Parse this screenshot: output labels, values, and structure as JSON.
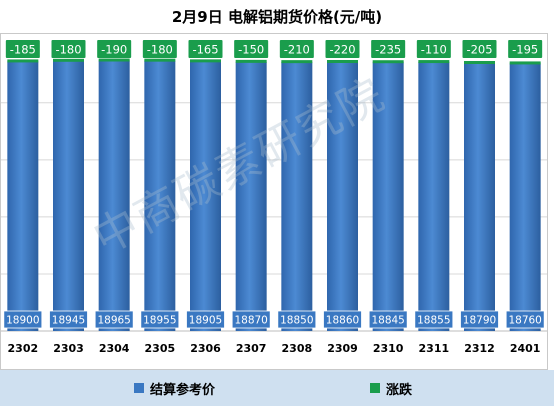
{
  "chart_data": {
    "type": "bar",
    "title": "2月9日 电解铝期货价格(元/吨)",
    "categories": [
      "2302",
      "2303",
      "2304",
      "2305",
      "2306",
      "2307",
      "2308",
      "2309",
      "2310",
      "2311",
      "2312",
      "2401"
    ],
    "series": [
      {
        "name": "结算参考价",
        "values": [
          18900,
          18945,
          18965,
          18955,
          18905,
          18870,
          18850,
          18860,
          18845,
          18855,
          18790,
          18760
        ]
      },
      {
        "name": "涨跌",
        "values": [
          -185,
          -180,
          -190,
          -180,
          -165,
          -150,
          -210,
          -220,
          -235,
          -110,
          -205,
          -195
        ]
      }
    ],
    "grid": true,
    "legend": "bottom"
  },
  "colors": {
    "bar": "#3a78c2",
    "change_box": "#1a9d4c",
    "label_box": "#3a78c2",
    "legend_band": "#cfe0f0"
  },
  "watermark": "中商碳素研究院"
}
